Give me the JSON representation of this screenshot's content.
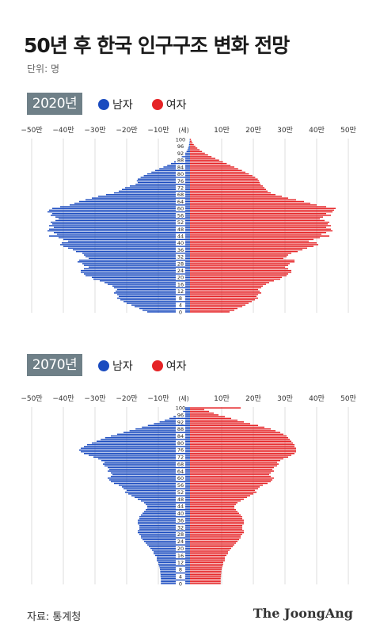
{
  "title": "50년 후 한국 인구구조 변화 전망",
  "unit": "단위: 명",
  "source": "자료: 통계청",
  "logo": "The JoongAng",
  "colors": {
    "male": "#1a4bbf",
    "female": "#e52326",
    "grid": "#dcdcdc"
  },
  "legend": {
    "male": "남자",
    "female": "여자"
  },
  "axis": {
    "ticks": [
      -50,
      -40,
      -30,
      -20,
      -10,
      10,
      20,
      30,
      40,
      50
    ],
    "tick_labels": [
      "−50만",
      "−40만",
      "−30만",
      "−20만",
      "−10만",
      "10만",
      "20만",
      "30만",
      "40만",
      "50만"
    ],
    "age_unit": "(세)",
    "age_labels": [
      100,
      96,
      92,
      88,
      84,
      80,
      76,
      72,
      68,
      64,
      60,
      56,
      52,
      48,
      44,
      40,
      36,
      32,
      28,
      24,
      20,
      16,
      12,
      8,
      4,
      0
    ]
  },
  "chart_data": [
    {
      "type": "bar",
      "year_label": "2020년",
      "orientation": "horizontal-pyramid",
      "unit": "만 명",
      "xlim": [
        -50,
        50
      ],
      "ages": [
        100,
        99,
        98,
        97,
        96,
        95,
        94,
        93,
        92,
        91,
        90,
        89,
        88,
        87,
        86,
        85,
        84,
        83,
        82,
        81,
        80,
        79,
        78,
        77,
        76,
        75,
        74,
        73,
        72,
        71,
        70,
        69,
        68,
        67,
        66,
        65,
        64,
        63,
        62,
        61,
        60,
        59,
        58,
        57,
        56,
        55,
        54,
        53,
        52,
        51,
        50,
        49,
        48,
        47,
        46,
        45,
        44,
        43,
        42,
        41,
        40,
        39,
        38,
        37,
        36,
        35,
        34,
        33,
        32,
        31,
        30,
        29,
        28,
        27,
        26,
        25,
        24,
        23,
        22,
        21,
        20,
        19,
        18,
        17,
        16,
        15,
        14,
        13,
        12,
        11,
        10,
        9,
        8,
        7,
        6,
        5,
        4,
        3,
        2,
        1,
        0
      ],
      "series": [
        {
          "name": "남자",
          "values": [
            0.1,
            0.1,
            0.2,
            0.3,
            0.4,
            0.6,
            0.8,
            1.1,
            1.5,
            2.0,
            2.6,
            3.3,
            4.1,
            5.0,
            6.0,
            7.2,
            8.4,
            9.7,
            11.0,
            12.2,
            13.5,
            14.6,
            15.6,
            16.5,
            16.8,
            16.5,
            17.2,
            19.0,
            20.5,
            21.5,
            22.5,
            24.0,
            26.5,
            29.0,
            31.0,
            33.0,
            35.0,
            36.5,
            38.0,
            41.0,
            43.5,
            44.5,
            45.0,
            43.5,
            44.0,
            42.5,
            41.5,
            42.5,
            44.0,
            43.5,
            44.5,
            43.0,
            44.5,
            45.0,
            43.0,
            42.0,
            44.5,
            41.5,
            40.0,
            38.5,
            40.5,
            41.0,
            40.0,
            38.5,
            37.0,
            36.0,
            34.0,
            33.5,
            33.0,
            32.0,
            35.0,
            35.5,
            34.0,
            33.5,
            32.0,
            33.5,
            34.5,
            34.5,
            33.5,
            33.0,
            31.0,
            30.5,
            28.5,
            27.0,
            26.0,
            24.5,
            24.0,
            23.0,
            23.5,
            24.0,
            23.0,
            22.5,
            23.0,
            22.0,
            21.0,
            20.0,
            18.5,
            17.5,
            16.0,
            15.0,
            13.5
          ]
        },
        {
          "name": "여자",
          "values": [
            0.3,
            0.5,
            0.8,
            1.2,
            1.7,
            2.3,
            3.0,
            3.8,
            4.7,
            5.7,
            6.8,
            8.0,
            9.2,
            10.4,
            11.6,
            12.8,
            14.0,
            15.2,
            16.4,
            17.5,
            18.6,
            19.7,
            20.6,
            21.4,
            21.8,
            22.0,
            22.3,
            23.0,
            23.5,
            24.0,
            24.5,
            25.5,
            27.0,
            29.0,
            31.0,
            33.5,
            36.0,
            38.0,
            40.0,
            43.0,
            46.0,
            45.5,
            45.0,
            43.0,
            44.5,
            42.0,
            41.0,
            42.5,
            44.0,
            43.5,
            44.5,
            43.0,
            44.5,
            45.0,
            43.0,
            41.5,
            44.0,
            41.0,
            39.0,
            37.5,
            40.0,
            40.5,
            39.0,
            37.0,
            35.5,
            34.0,
            32.0,
            31.0,
            30.5,
            29.5,
            33.0,
            33.0,
            31.5,
            31.0,
            30.0,
            31.0,
            32.0,
            32.0,
            31.0,
            30.5,
            29.0,
            28.5,
            26.5,
            25.0,
            24.0,
            23.0,
            22.5,
            21.5,
            22.0,
            22.5,
            21.5,
            21.0,
            21.5,
            20.5,
            19.5,
            18.5,
            17.5,
            16.5,
            15.0,
            14.0,
            12.5
          ]
        }
      ]
    },
    {
      "type": "bar",
      "year_label": "2070년",
      "orientation": "horizontal-pyramid",
      "unit": "만 명",
      "xlim": [
        -50,
        50
      ],
      "ages": [
        100,
        99,
        98,
        97,
        96,
        95,
        94,
        93,
        92,
        91,
        90,
        89,
        88,
        87,
        86,
        85,
        84,
        83,
        82,
        81,
        80,
        79,
        78,
        77,
        76,
        75,
        74,
        73,
        72,
        71,
        70,
        69,
        68,
        67,
        66,
        65,
        64,
        63,
        62,
        61,
        60,
        59,
        58,
        57,
        56,
        55,
        54,
        53,
        52,
        51,
        50,
        49,
        48,
        47,
        46,
        45,
        44,
        43,
        42,
        41,
        40,
        39,
        38,
        37,
        36,
        35,
        34,
        33,
        32,
        31,
        30,
        29,
        28,
        27,
        26,
        25,
        24,
        23,
        22,
        21,
        20,
        19,
        18,
        17,
        16,
        15,
        14,
        13,
        12,
        11,
        10,
        9,
        8,
        7,
        6,
        5,
        4,
        3,
        2,
        1,
        0
      ],
      "series": [
        {
          "name": "남자",
          "values": [
            4.0,
            1.5,
            2.2,
            3.0,
            4.0,
            5.2,
            6.5,
            8.0,
            9.6,
            11.4,
            13.3,
            15.2,
            17.2,
            19.1,
            21.0,
            23.0,
            25.0,
            26.8,
            28.2,
            29.5,
            31.0,
            32.5,
            33.5,
            34.5,
            35.0,
            34.5,
            33.5,
            32.0,
            30.5,
            29.0,
            28.0,
            27.0,
            27.5,
            27.0,
            26.0,
            25.5,
            26.0,
            25.0,
            24.5,
            25.0,
            26.0,
            25.5,
            25.0,
            24.0,
            22.5,
            21.5,
            21.0,
            20.0,
            20.5,
            19.5,
            18.5,
            17.5,
            16.5,
            15.5,
            14.5,
            14.0,
            13.5,
            13.5,
            14.0,
            14.5,
            15.0,
            15.5,
            16.0,
            16.0,
            16.5,
            16.5,
            16.5,
            16.0,
            16.0,
            16.0,
            16.5,
            16.5,
            16.0,
            15.5,
            15.5,
            15.0,
            14.5,
            14.0,
            13.5,
            13.0,
            12.5,
            12.0,
            11.5,
            11.5,
            11.0,
            10.5,
            10.5,
            10.5,
            10.0,
            10.0,
            9.8,
            9.6,
            9.5,
            9.4,
            9.4,
            9.3,
            9.3,
            9.2,
            9.2,
            9.2,
            9.2
          ]
        },
        {
          "name": "여자",
          "values": [
            16.0,
            4.5,
            6.0,
            7.5,
            9.0,
            11.0,
            13.0,
            15.0,
            17.0,
            19.0,
            21.5,
            23.5,
            25.5,
            27.0,
            28.5,
            29.5,
            30.5,
            31.0,
            31.5,
            32.0,
            32.5,
            33.0,
            33.0,
            33.5,
            33.5,
            33.5,
            33.0,
            32.0,
            31.0,
            29.5,
            28.5,
            27.5,
            28.0,
            27.5,
            26.5,
            26.0,
            26.5,
            25.5,
            25.0,
            25.5,
            26.5,
            26.0,
            25.5,
            24.5,
            23.0,
            22.0,
            21.5,
            20.5,
            21.0,
            20.0,
            19.0,
            18.0,
            17.0,
            16.0,
            15.0,
            14.5,
            14.0,
            14.0,
            14.5,
            15.0,
            15.5,
            16.0,
            16.5,
            16.5,
            17.0,
            17.0,
            17.0,
            16.5,
            16.5,
            16.5,
            17.0,
            17.0,
            16.5,
            16.0,
            16.0,
            15.5,
            15.0,
            14.5,
            14.0,
            13.5,
            13.0,
            12.5,
            12.0,
            12.0,
            11.5,
            11.0,
            11.0,
            11.0,
            10.5,
            10.5,
            10.3,
            10.1,
            10.0,
            9.9,
            9.9,
            9.8,
            9.8,
            9.7,
            9.7,
            9.7,
            9.7
          ]
        }
      ]
    }
  ]
}
